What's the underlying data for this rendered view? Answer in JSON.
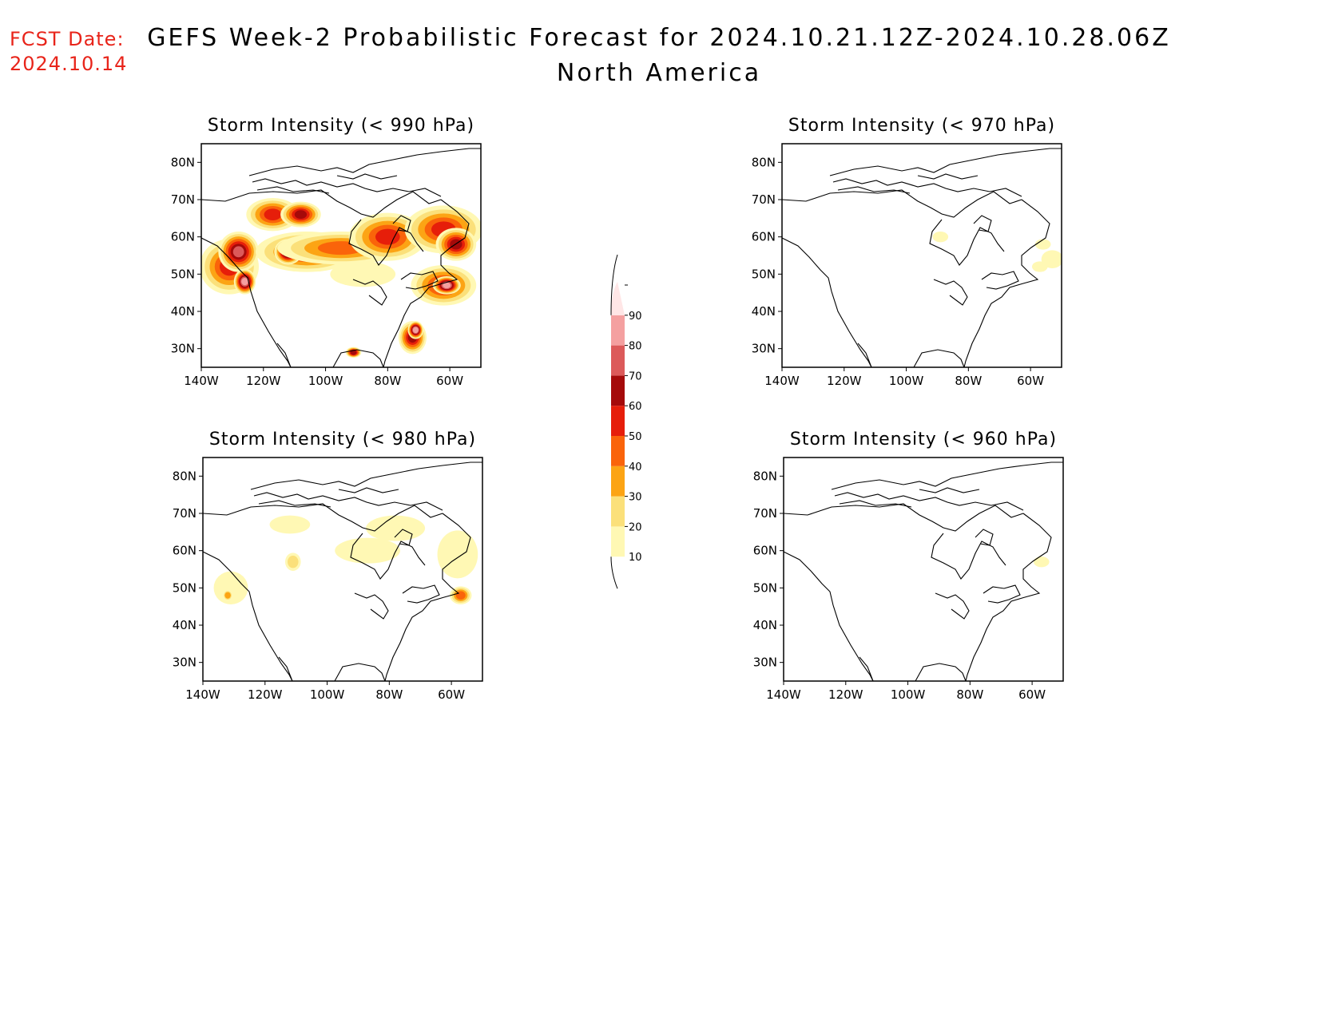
{
  "fcst": {
    "line1": "FCST Date:",
    "line2": "2024.10.14",
    "color": "#e8241a"
  },
  "title": "GEFS Week-2 Probabilistic Forecast for 2024.10.21.12Z-2024.10.28.06Z",
  "subtitle": "North America",
  "axes": {
    "lat_ticks": [
      30,
      40,
      50,
      60,
      70,
      80
    ],
    "lat_labels": [
      "30N",
      "40N",
      "50N",
      "60N",
      "70N",
      "80N"
    ],
    "lon_ticks": [
      -140,
      -120,
      -100,
      -80,
      -60
    ],
    "lon_labels": [
      "140W",
      "120W",
      "100W",
      "80W",
      "60W"
    ],
    "lat_range": [
      25,
      85
    ],
    "lon_range": [
      -140,
      -50
    ]
  },
  "colorbar": {
    "levels": [
      10,
      20,
      30,
      40,
      50,
      60,
      70,
      80,
      90
    ],
    "labels": [
      "10",
      "20",
      "30",
      "40",
      "50",
      "60",
      "70",
      "80",
      "90"
    ],
    "colors": [
      "#fff8b4",
      "#fbe07a",
      "#fca414",
      "#fa640a",
      "#e61e0a",
      "#a50a0a",
      "#dc5a5a",
      "#f4a0a0",
      "#ffe6e6"
    ]
  },
  "panels": [
    {
      "id": "p990",
      "title": "Storm Intensity (< 990 hPa)",
      "blobs": [
        {
          "lon": -131,
          "lat": 52,
          "rx": 9,
          "ry": 7,
          "level": 5
        },
        {
          "lon": -128,
          "lat": 56,
          "rx": 6,
          "ry": 5,
          "level": 7
        },
        {
          "lon": -126,
          "lat": 48,
          "rx": 3,
          "ry": 3,
          "level": 8
        },
        {
          "lon": -117,
          "lat": 66,
          "rx": 8,
          "ry": 4,
          "level": 5
        },
        {
          "lon": -106,
          "lat": 56,
          "rx": 16,
          "ry": 5,
          "level": 5
        },
        {
          "lon": -112,
          "lat": 56,
          "rx": 4,
          "ry": 3,
          "level": 8
        },
        {
          "lon": -108,
          "lat": 66,
          "rx": 6,
          "ry": 3,
          "level": 6
        },
        {
          "lon": -95,
          "lat": 57,
          "rx": 20,
          "ry": 4,
          "level": 4
        },
        {
          "lon": -80,
          "lat": 60,
          "rx": 12,
          "ry": 6,
          "level": 5
        },
        {
          "lon": -62,
          "lat": 62,
          "rx": 12,
          "ry": 6,
          "level": 5
        },
        {
          "lon": -58,
          "lat": 58,
          "rx": 6,
          "ry": 4,
          "level": 6
        },
        {
          "lon": -88,
          "lat": 50,
          "rx": 10,
          "ry": 3,
          "level": 1
        },
        {
          "lon": -62,
          "lat": 47,
          "rx": 10,
          "ry": 5,
          "level": 5
        },
        {
          "lon": -61,
          "lat": 47,
          "rx": 4,
          "ry": 2,
          "level": 8
        },
        {
          "lon": -72,
          "lat": 33,
          "rx": 4,
          "ry": 4,
          "level": 6
        },
        {
          "lon": -71,
          "lat": 35,
          "rx": 2,
          "ry": 2,
          "level": 8
        },
        {
          "lon": -91,
          "lat": 29,
          "rx": 2,
          "ry": 1,
          "level": 6
        }
      ]
    },
    {
      "id": "p970",
      "title": "Storm Intensity (< 970 hPa)",
      "blobs": [
        {
          "lon": -89,
          "lat": 60,
          "rx": 2,
          "ry": 1,
          "level": 1
        },
        {
          "lon": -56,
          "lat": 58,
          "rx": 2,
          "ry": 1,
          "level": 1
        },
        {
          "lon": -53,
          "lat": 54,
          "rx": 3,
          "ry": 2,
          "level": 1
        },
        {
          "lon": -57,
          "lat": 52,
          "rx": 2,
          "ry": 1,
          "level": 1
        }
      ]
    },
    {
      "id": "p980",
      "title": "Storm Intensity (< 980 hPa)",
      "blobs": [
        {
          "lon": -131,
          "lat": 50,
          "rx": 5,
          "ry": 4,
          "level": 1
        },
        {
          "lon": -132,
          "lat": 48,
          "rx": 1,
          "ry": 1,
          "level": 3
        },
        {
          "lon": -112,
          "lat": 67,
          "rx": 6,
          "ry": 2,
          "level": 1
        },
        {
          "lon": -111,
          "lat": 57,
          "rx": 2,
          "ry": 2,
          "level": 2
        },
        {
          "lon": -87,
          "lat": 60,
          "rx": 10,
          "ry": 3,
          "level": 1
        },
        {
          "lon": -78,
          "lat": 66,
          "rx": 9,
          "ry": 3,
          "level": 1
        },
        {
          "lon": -58,
          "lat": 59,
          "rx": 6,
          "ry": 6,
          "level": 1
        },
        {
          "lon": -57,
          "lat": 48,
          "rx": 3,
          "ry": 2,
          "level": 4
        }
      ]
    },
    {
      "id": "p960",
      "title": "Storm Intensity (< 960 hPa)",
      "blobs": [
        {
          "lon": -57,
          "lat": 57,
          "rx": 2,
          "ry": 1,
          "level": 1
        }
      ]
    }
  ]
}
